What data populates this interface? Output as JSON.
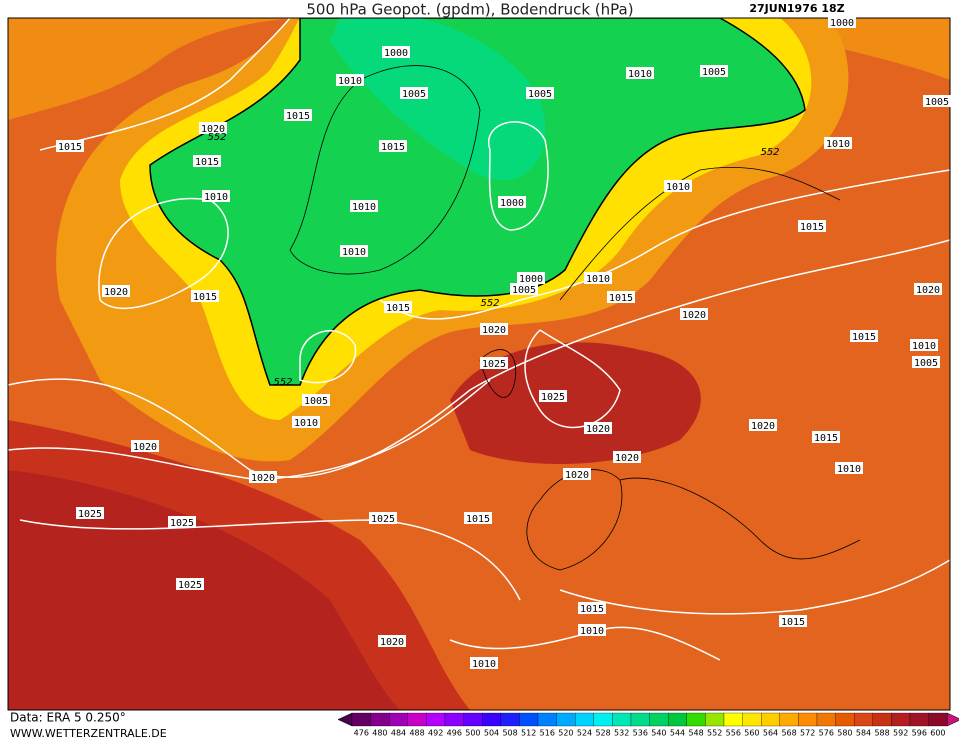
{
  "title": "500 hPa Geopot. (gpdm), Bodendruck (hPa)",
  "valid_time": "27JUN1976 18Z",
  "source": "Data: ERA 5 0.250°",
  "website": "WWW.WETTERZENTRALE.DE",
  "isobar_labels": [
    1000,
    1010,
    1005,
    1015,
    1020,
    1015,
    1015,
    1015,
    1010,
    1010,
    1000,
    1010,
    1005,
    1010,
    1005,
    1000,
    1005,
    1010,
    1010,
    1015,
    1020,
    1015,
    1000,
    1005,
    1010,
    1015,
    1015,
    1020,
    1020,
    1020,
    1015,
    1010,
    1005,
    1025,
    1005,
    1025,
    1010,
    1020,
    1020,
    1015,
    1020,
    1020,
    1010,
    1020,
    1020,
    1025,
    1025,
    1025,
    1015,
    1025,
    1015,
    1015,
    1010,
    1020,
    1010
  ],
  "geopotential_labels": [
    552,
    552,
    552,
    552
  ],
  "colorbar": {
    "ticks": [
      476,
      480,
      484,
      488,
      492,
      496,
      500,
      504,
      508,
      512,
      516,
      520,
      524,
      528,
      532,
      536,
      540,
      544,
      548,
      552,
      556,
      560,
      564,
      568,
      572,
      576,
      580,
      584,
      588,
      592,
      596,
      600
    ],
    "colors": [
      "#640064",
      "#82008c",
      "#a000b4",
      "#c800c8",
      "#b400ff",
      "#8c00ff",
      "#6400ff",
      "#3c00ff",
      "#1e1eff",
      "#0050ff",
      "#0082ff",
      "#00aaff",
      "#00d2ff",
      "#00f0f0",
      "#00e6b4",
      "#00dc8c",
      "#00d264",
      "#00c83c",
      "#32dc00",
      "#96e600",
      "#ffff00",
      "#ffe600",
      "#ffcc00",
      "#ffaa00",
      "#ff8c00",
      "#f07800",
      "#e65a00",
      "#dc4614",
      "#c83214",
      "#b41e1e",
      "#a01428",
      "#8c0a28"
    ],
    "under_color": "#4b0050",
    "over_color": "#c8147a"
  }
}
